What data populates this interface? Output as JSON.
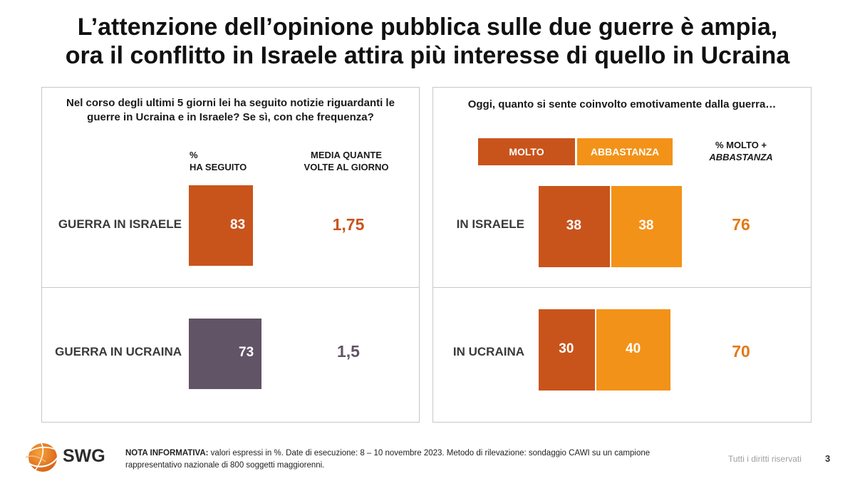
{
  "title_line1": "L’attenzione dell’opinione pubblica sulle due guerre è ampia,",
  "title_line2": "ora il conflitto in Israele attira più interesse di quello in Ucraina",
  "colors": {
    "molto": "#c9541b",
    "abbastanza": "#f39218",
    "ucraina_bar": "#605466",
    "value_orange": "#c9541b",
    "value_purple": "#605466",
    "highlight_orange": "#e37a16"
  },
  "chart_data": [
    {
      "type": "bar",
      "question_line1": "Nel corso degli ultimi 5 giorni lei ha seguito notizie riguardanti le",
      "question_line2": "guerre in Ucraina e in Israele? Se sì, con che frequenza?",
      "col1_header_line1": "%",
      "col1_header_line2": "HA SEGUITO",
      "col2_header_line1": "MEDIA QUANTE",
      "col2_header_line2": "VOLTE AL GIORNO",
      "categories": [
        "GUERRA IN ISRAELE",
        "GUERRA IN UCRAINA"
      ],
      "series": [
        {
          "name": "% HA SEGUITO",
          "values": [
            83,
            73
          ]
        }
      ],
      "media_label": [
        "1,75",
        "1,5"
      ],
      "media_values": [
        1.75,
        1.5
      ],
      "ylim": [
        0,
        100
      ]
    },
    {
      "type": "bar",
      "question": "Oggi, quanto si sente coinvolto emotivamente dalla guerra…",
      "legend": [
        "MOLTO",
        "ABBASTANZA"
      ],
      "total_header_line1": "% MOLTO +",
      "total_header_line2": "ABBASTANZA",
      "categories": [
        "IN ISRAELE",
        "IN UCRAINA"
      ],
      "series": [
        {
          "name": "MOLTO",
          "values": [
            38,
            30
          ]
        },
        {
          "name": "ABBASTANZA",
          "values": [
            38,
            40
          ]
        }
      ],
      "totals": [
        76,
        70
      ],
      "xlim": [
        0,
        100
      ]
    }
  ],
  "footer": {
    "note_bold": "NOTA INFORMATIVA:",
    "note_line1": " valori espressi in %. Date di esecuzione: 8 – 10 novembre 2023. Metodo di rilevazione: sondaggio CAWI su un campione",
    "note_line2": "rappresentativo nazionale di 800 soggetti maggiorenni.",
    "rights": "Tutti i diritti riservati",
    "page": "3",
    "logo": "SWG"
  }
}
